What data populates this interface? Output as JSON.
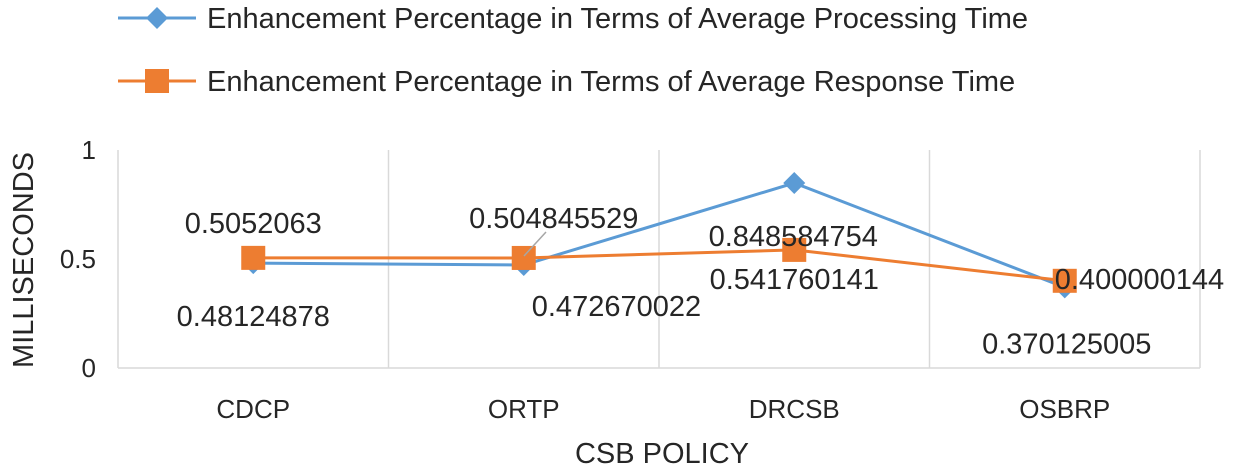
{
  "chart_data": {
    "type": "line",
    "title": "",
    "xlabel": "CSB POLICY",
    "ylabel": "MILLISECONDS",
    "categories": [
      "CDCP",
      "ORTP",
      "DRCSB",
      "OSBRP"
    ],
    "ylim": [
      0,
      1
    ],
    "yticks": [
      0,
      0.5,
      1
    ],
    "ytick_labels": [
      "0",
      "0.5",
      "1"
    ],
    "grid": "vertical",
    "legend_position": "top",
    "series": [
      {
        "name": "Enhancement Percentage in Terms of Average Processing Time",
        "color": "#5b9bd5",
        "marker": "diamond",
        "values": [
          0.48124878,
          0.472670022,
          0.848584754,
          0.370125005
        ],
        "value_labels": [
          "0.48124878",
          "0.472670022",
          "0.848584754",
          "0.370125005"
        ]
      },
      {
        "name": "Enhancement Percentage in Terms of Average Response Time",
        "color": "#ed7d31",
        "marker": "square",
        "values": [
          0.5052063,
          0.504845529,
          0.541760141,
          0.400000144
        ],
        "value_labels": [
          "0.5052063",
          "0.504845529",
          "0.541760141",
          "0.400000144"
        ]
      }
    ]
  }
}
